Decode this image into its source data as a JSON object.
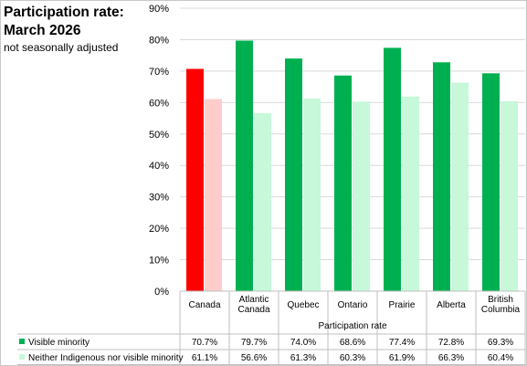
{
  "chart_data": {
    "type": "bar",
    "title": "Participation rate: March 2026",
    "subtitle": "not seasonally adjusted",
    "xlabel": "Participation rate",
    "ylabel": "",
    "ylim": [
      0,
      90
    ],
    "yticks": [
      "0%",
      "10%",
      "20%",
      "30%",
      "40%",
      "50%",
      "60%",
      "70%",
      "80%",
      "90%"
    ],
    "categories": [
      [
        "Canada"
      ],
      [
        "Atlantic",
        "Canada"
      ],
      [
        "Quebec"
      ],
      [
        "Ontario"
      ],
      [
        "Prairie"
      ],
      [
        "Alberta"
      ],
      [
        "British",
        "Columbia"
      ]
    ],
    "series": [
      {
        "name": "Visible minority",
        "values": [
          70.7,
          79.7,
          74.0,
          68.6,
          77.4,
          72.8,
          69.3
        ],
        "labels": [
          "70.7%",
          "79.7%",
          "74.0%",
          "68.6%",
          "77.4%",
          "72.8%",
          "69.3%"
        ],
        "color": "#00b050",
        "highlight_color": "#ff0000"
      },
      {
        "name": "Neither Indigenous nor visible minority",
        "values": [
          61.1,
          56.6,
          61.3,
          60.3,
          61.9,
          66.3,
          60.4
        ],
        "labels": [
          "61.1%",
          "56.6%",
          "61.3%",
          "60.3%",
          "61.9%",
          "66.3%",
          "60.4%"
        ],
        "color": "#c6f8d9",
        "highlight_color": "#ffcccc"
      }
    ],
    "grid": true,
    "legend": "data-table"
  }
}
